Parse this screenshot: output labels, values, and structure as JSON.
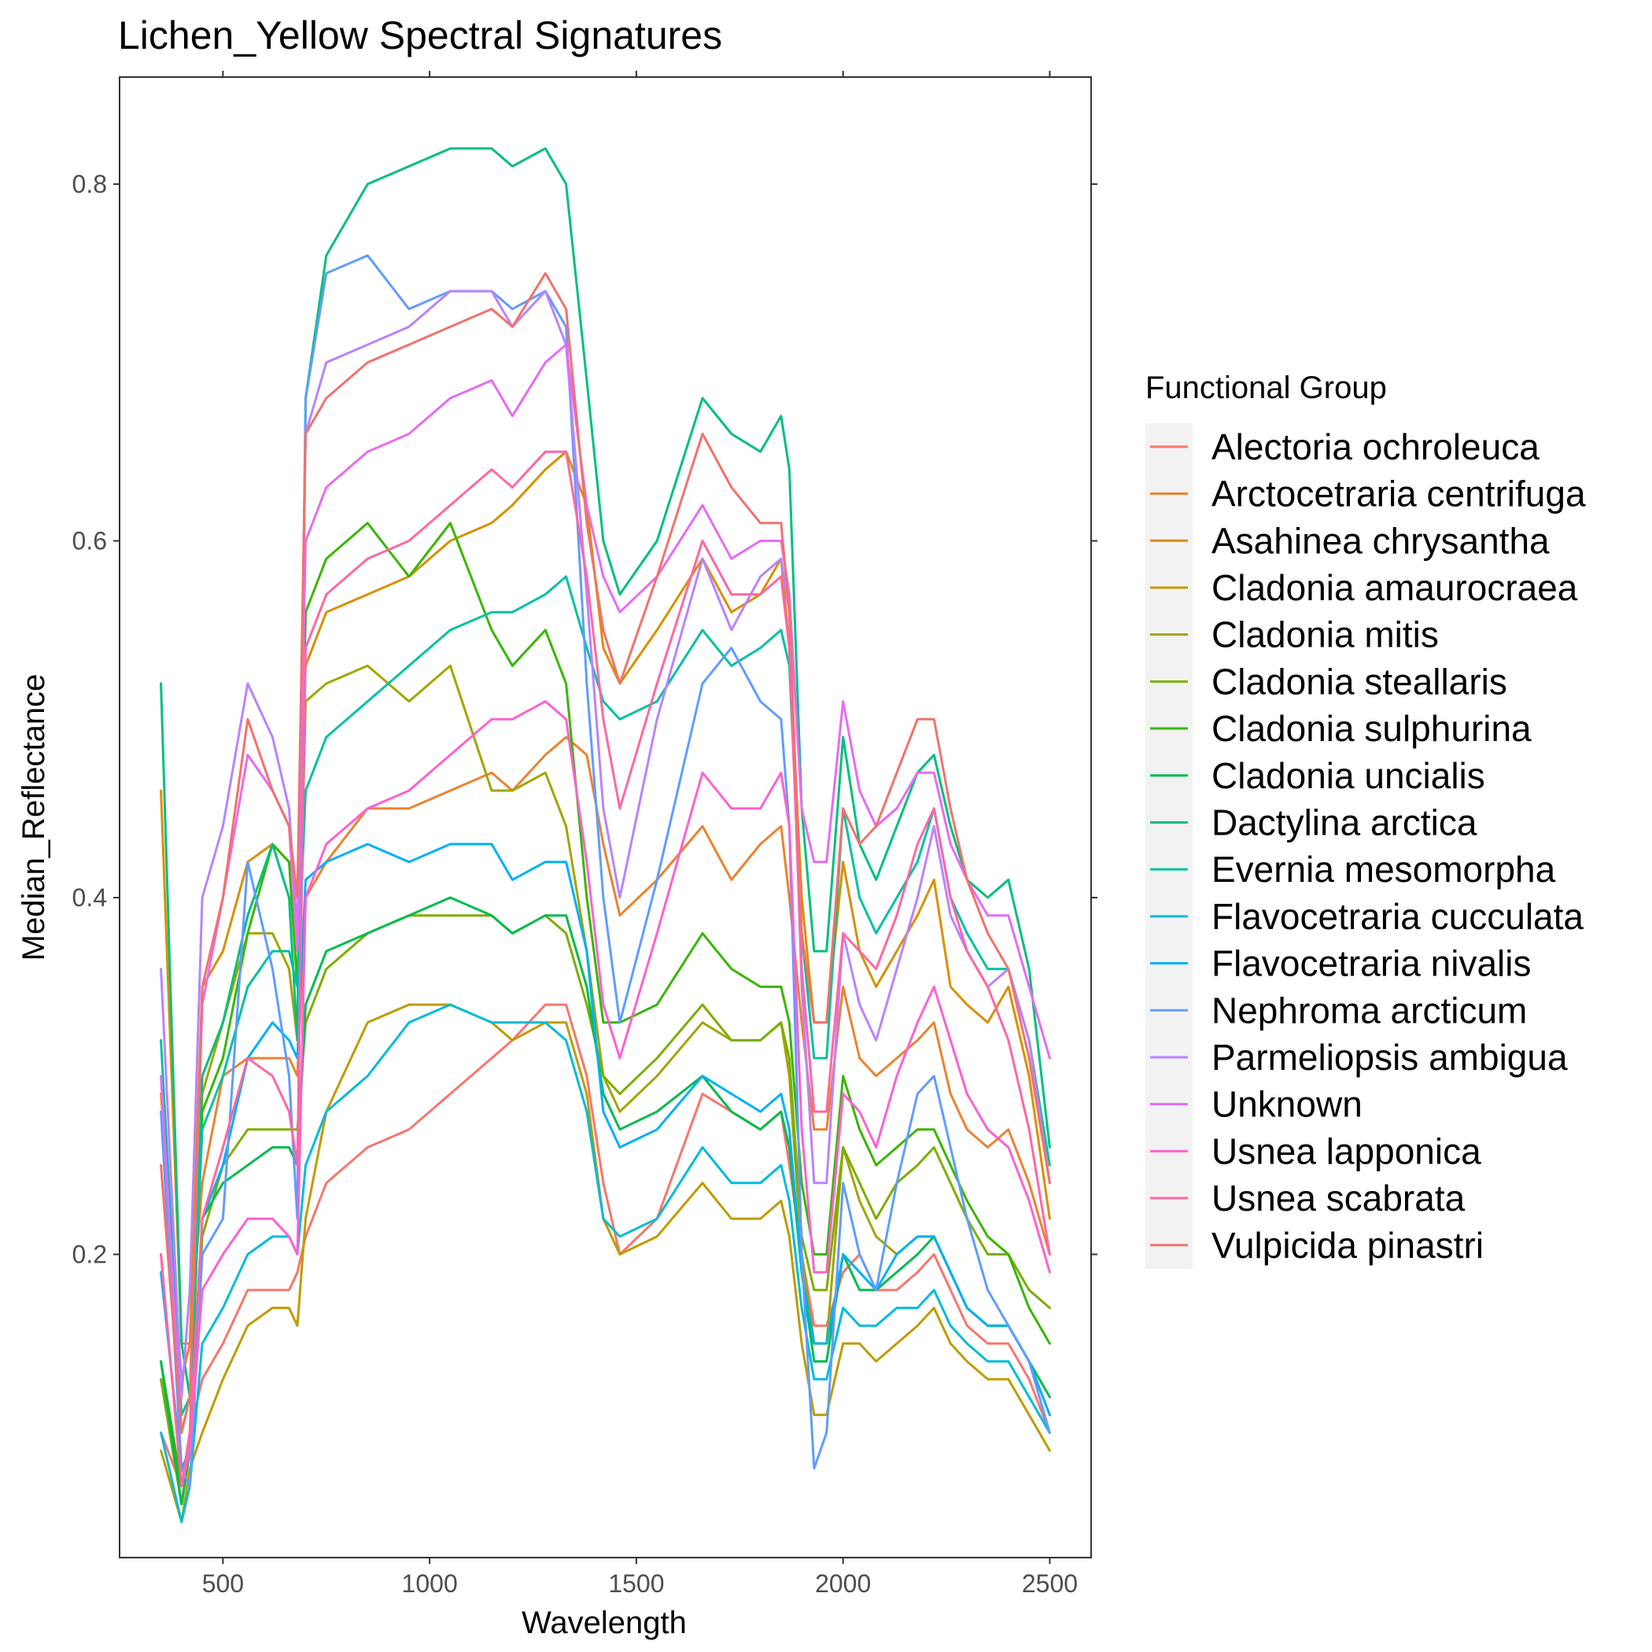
{
  "chart_data": {
    "type": "line",
    "title": "Lichen_Yellow Spectral Signatures",
    "xlabel": "Wavelength",
    "ylabel": "Median_Reflectance",
    "xlim": [
      250,
      2600
    ],
    "ylim": [
      0.03,
      0.86
    ],
    "xticks": [
      500,
      1000,
      1500,
      2000,
      2500
    ],
    "yticks": [
      0.2,
      0.4,
      0.6,
      0.8
    ],
    "xtick_labels": [
      "500",
      "1000",
      "1500",
      "2000",
      "2500"
    ],
    "ytick_labels": [
      "0.2",
      "0.4",
      "0.6",
      "0.8"
    ],
    "grid": false,
    "legend": {
      "title": "Functional Group",
      "position": "right"
    },
    "x": [
      350,
      400,
      420,
      450,
      500,
      560,
      620,
      660,
      680,
      700,
      750,
      850,
      950,
      1050,
      1150,
      1200,
      1280,
      1330,
      1380,
      1420,
      1460,
      1550,
      1660,
      1730,
      1800,
      1850,
      1870,
      1900,
      1930,
      1960,
      2000,
      2040,
      2080,
      2130,
      2180,
      2220,
      2260,
      2300,
      2350,
      2400,
      2450,
      2500
    ],
    "series": [
      {
        "name": "Alectoria ochroleuca",
        "color": "#F8766D",
        "values": [
          0.1,
          0.07,
          0.1,
          0.13,
          0.15,
          0.18,
          0.18,
          0.18,
          0.19,
          0.21,
          0.24,
          0.26,
          0.27,
          0.29,
          0.31,
          0.32,
          0.34,
          0.34,
          0.3,
          0.24,
          0.2,
          0.22,
          0.29,
          0.28,
          0.27,
          0.28,
          0.25,
          0.2,
          0.16,
          0.16,
          0.19,
          0.2,
          0.18,
          0.18,
          0.19,
          0.2,
          0.18,
          0.16,
          0.15,
          0.15,
          0.13,
          0.1
        ]
      },
      {
        "name": "Arctocetraria centrifuga",
        "color": "#EA8331",
        "values": [
          0.29,
          0.13,
          0.15,
          0.24,
          0.3,
          0.31,
          0.31,
          0.31,
          0.3,
          0.4,
          0.42,
          0.45,
          0.45,
          0.46,
          0.47,
          0.46,
          0.48,
          0.49,
          0.48,
          0.43,
          0.39,
          0.41,
          0.44,
          0.41,
          0.43,
          0.44,
          0.4,
          0.33,
          0.27,
          0.27,
          0.35,
          0.31,
          0.3,
          0.31,
          0.32,
          0.33,
          0.29,
          0.27,
          0.26,
          0.27,
          0.24,
          0.2
        ]
      },
      {
        "name": "Asahinea chrysantha",
        "color": "#D89000",
        "values": [
          0.46,
          0.15,
          0.15,
          0.35,
          0.37,
          0.42,
          0.43,
          0.42,
          0.4,
          0.53,
          0.56,
          0.57,
          0.58,
          0.6,
          0.61,
          0.62,
          0.64,
          0.65,
          0.62,
          0.54,
          0.52,
          0.55,
          0.59,
          0.56,
          0.57,
          0.59,
          0.54,
          0.4,
          0.33,
          0.33,
          0.42,
          0.37,
          0.35,
          0.37,
          0.39,
          0.41,
          0.35,
          0.34,
          0.33,
          0.35,
          0.3,
          0.22
        ]
      },
      {
        "name": "Cladonia amaurocraea",
        "color": "#C09B00",
        "values": [
          0.09,
          0.05,
          0.08,
          0.1,
          0.13,
          0.16,
          0.17,
          0.17,
          0.16,
          0.22,
          0.28,
          0.33,
          0.34,
          0.34,
          0.33,
          0.32,
          0.33,
          0.33,
          0.29,
          0.22,
          0.2,
          0.21,
          0.24,
          0.22,
          0.22,
          0.23,
          0.21,
          0.15,
          0.11,
          0.11,
          0.15,
          0.15,
          0.14,
          0.15,
          0.16,
          0.17,
          0.15,
          0.14,
          0.13,
          0.13,
          0.11,
          0.09
        ]
      },
      {
        "name": "Cladonia mitis",
        "color": "#A3A500",
        "values": [
          0.13,
          0.06,
          0.09,
          0.29,
          0.33,
          0.38,
          0.38,
          0.36,
          0.32,
          0.51,
          0.52,
          0.53,
          0.51,
          0.53,
          0.46,
          0.46,
          0.47,
          0.44,
          0.37,
          0.3,
          0.28,
          0.3,
          0.33,
          0.32,
          0.32,
          0.33,
          0.3,
          0.2,
          0.15,
          0.15,
          0.26,
          0.23,
          0.21,
          0.2,
          0.21,
          0.21,
          0.19,
          0.17,
          0.16,
          0.16,
          0.14,
          0.11
        ]
      },
      {
        "name": "Cladonia steallaris",
        "color": "#7CAE00",
        "values": [
          0.13,
          0.06,
          0.09,
          0.21,
          0.25,
          0.27,
          0.27,
          0.27,
          0.27,
          0.33,
          0.36,
          0.38,
          0.39,
          0.39,
          0.39,
          0.38,
          0.39,
          0.38,
          0.34,
          0.3,
          0.29,
          0.31,
          0.34,
          0.32,
          0.32,
          0.33,
          0.31,
          0.21,
          0.18,
          0.18,
          0.26,
          0.24,
          0.22,
          0.24,
          0.25,
          0.26,
          0.24,
          0.22,
          0.2,
          0.2,
          0.18,
          0.17
        ]
      },
      {
        "name": "Cladonia sulphurina",
        "color": "#39B600",
        "values": [
          0.14,
          0.07,
          0.1,
          0.28,
          0.31,
          0.38,
          0.43,
          0.42,
          0.35,
          0.56,
          0.59,
          0.61,
          0.58,
          0.61,
          0.55,
          0.53,
          0.55,
          0.52,
          0.4,
          0.33,
          0.33,
          0.34,
          0.38,
          0.36,
          0.35,
          0.35,
          0.33,
          0.24,
          0.2,
          0.2,
          0.3,
          0.27,
          0.25,
          0.26,
          0.27,
          0.27,
          0.25,
          0.23,
          0.21,
          0.2,
          0.17,
          0.15
        ]
      },
      {
        "name": "Cladonia uncialis",
        "color": "#00BB4E",
        "values": [
          0.14,
          0.06,
          0.09,
          0.22,
          0.24,
          0.25,
          0.26,
          0.26,
          0.25,
          0.34,
          0.37,
          0.38,
          0.39,
          0.4,
          0.39,
          0.38,
          0.39,
          0.39,
          0.35,
          0.29,
          0.27,
          0.28,
          0.3,
          0.28,
          0.27,
          0.28,
          0.26,
          0.19,
          0.14,
          0.14,
          0.2,
          0.18,
          0.18,
          0.19,
          0.2,
          0.21,
          0.19,
          0.17,
          0.16,
          0.16,
          0.14,
          0.12
        ]
      },
      {
        "name": "Dactylina arctica",
        "color": "#00BF7D",
        "values": [
          0.52,
          0.15,
          0.12,
          0.3,
          0.33,
          0.39,
          0.43,
          0.4,
          0.32,
          0.68,
          0.76,
          0.8,
          0.81,
          0.82,
          0.82,
          0.81,
          0.82,
          0.8,
          0.69,
          0.6,
          0.57,
          0.6,
          0.68,
          0.66,
          0.65,
          0.67,
          0.64,
          0.45,
          0.37,
          0.37,
          0.49,
          0.43,
          0.41,
          0.44,
          0.47,
          0.48,
          0.44,
          0.41,
          0.4,
          0.41,
          0.36,
          0.26
        ]
      },
      {
        "name": "Evernia mesomorpha",
        "color": "#00C1A3",
        "values": [
          0.32,
          0.11,
          0.12,
          0.27,
          0.3,
          0.35,
          0.37,
          0.37,
          0.35,
          0.46,
          0.49,
          0.51,
          0.53,
          0.55,
          0.56,
          0.56,
          0.57,
          0.58,
          0.54,
          0.51,
          0.5,
          0.51,
          0.55,
          0.53,
          0.54,
          0.55,
          0.53,
          0.38,
          0.31,
          0.31,
          0.45,
          0.4,
          0.38,
          0.4,
          0.42,
          0.45,
          0.4,
          0.38,
          0.36,
          0.36,
          0.32,
          0.25
        ]
      },
      {
        "name": "Flavocetraria cucculata",
        "color": "#00BCD8",
        "values": [
          0.1,
          0.05,
          0.07,
          0.15,
          0.17,
          0.2,
          0.21,
          0.21,
          0.2,
          0.25,
          0.28,
          0.3,
          0.33,
          0.34,
          0.33,
          0.33,
          0.33,
          0.32,
          0.28,
          0.22,
          0.21,
          0.22,
          0.26,
          0.24,
          0.24,
          0.25,
          0.23,
          0.17,
          0.13,
          0.13,
          0.17,
          0.16,
          0.16,
          0.17,
          0.17,
          0.18,
          0.16,
          0.15,
          0.14,
          0.14,
          0.12,
          0.1
        ]
      },
      {
        "name": "Flavocetraria nivalis",
        "color": "#00B0F6",
        "values": [
          0.19,
          0.08,
          0.09,
          0.22,
          0.25,
          0.31,
          0.33,
          0.32,
          0.31,
          0.41,
          0.42,
          0.43,
          0.42,
          0.43,
          0.43,
          0.41,
          0.42,
          0.42,
          0.37,
          0.28,
          0.26,
          0.27,
          0.3,
          0.29,
          0.28,
          0.29,
          0.27,
          0.19,
          0.15,
          0.15,
          0.2,
          0.19,
          0.18,
          0.2,
          0.21,
          0.21,
          0.19,
          0.17,
          0.16,
          0.16,
          0.14,
          0.11
        ]
      },
      {
        "name": "Nephroma arcticum",
        "color": "#619CFF",
        "values": [
          0.28,
          0.08,
          0.07,
          0.2,
          0.22,
          0.42,
          0.36,
          0.3,
          0.22,
          0.68,
          0.75,
          0.76,
          0.73,
          0.74,
          0.74,
          0.73,
          0.74,
          0.72,
          0.52,
          0.4,
          0.33,
          0.41,
          0.52,
          0.54,
          0.51,
          0.5,
          0.44,
          0.2,
          0.08,
          0.1,
          0.24,
          0.2,
          0.18,
          0.24,
          0.29,
          0.3,
          0.26,
          0.22,
          0.18,
          0.16,
          0.14,
          0.1
        ]
      },
      {
        "name": "Parmeliopsis ambigua",
        "color": "#B983FF",
        "values": [
          0.36,
          0.12,
          0.18,
          0.4,
          0.44,
          0.52,
          0.49,
          0.45,
          0.38,
          0.66,
          0.7,
          0.71,
          0.72,
          0.74,
          0.74,
          0.72,
          0.74,
          0.71,
          0.57,
          0.45,
          0.4,
          0.5,
          0.59,
          0.55,
          0.58,
          0.59,
          0.56,
          0.35,
          0.24,
          0.24,
          0.38,
          0.34,
          0.32,
          0.36,
          0.4,
          0.44,
          0.39,
          0.37,
          0.35,
          0.36,
          0.32,
          0.24
        ]
      },
      {
        "name": "Unknown",
        "color": "#E76BF3",
        "values": [
          0.3,
          0.1,
          0.12,
          0.34,
          0.4,
          0.48,
          0.46,
          0.44,
          0.37,
          0.6,
          0.63,
          0.65,
          0.66,
          0.68,
          0.69,
          0.67,
          0.7,
          0.71,
          0.62,
          0.58,
          0.56,
          0.58,
          0.62,
          0.59,
          0.6,
          0.6,
          0.57,
          0.45,
          0.42,
          0.42,
          0.51,
          0.46,
          0.44,
          0.45,
          0.47,
          0.47,
          0.43,
          0.41,
          0.39,
          0.39,
          0.35,
          0.31
        ]
      },
      {
        "name": "Usnea lapponica",
        "color": "#FD61D1",
        "values": [
          0.2,
          0.07,
          0.09,
          0.18,
          0.2,
          0.22,
          0.22,
          0.21,
          0.2,
          0.4,
          0.43,
          0.45,
          0.46,
          0.48,
          0.5,
          0.5,
          0.51,
          0.5,
          0.42,
          0.34,
          0.31,
          0.38,
          0.47,
          0.45,
          0.45,
          0.47,
          0.44,
          0.27,
          0.19,
          0.19,
          0.29,
          0.28,
          0.26,
          0.3,
          0.33,
          0.35,
          0.32,
          0.29,
          0.27,
          0.26,
          0.23,
          0.19
        ]
      },
      {
        "name": "Usnea scabrata",
        "color": "#FF67A4",
        "values": [
          0.2,
          0.07,
          0.1,
          0.22,
          0.26,
          0.31,
          0.3,
          0.28,
          0.25,
          0.54,
          0.57,
          0.59,
          0.6,
          0.62,
          0.64,
          0.63,
          0.65,
          0.65,
          0.58,
          0.5,
          0.45,
          0.52,
          0.6,
          0.57,
          0.57,
          0.58,
          0.54,
          0.36,
          0.28,
          0.28,
          0.38,
          0.37,
          0.36,
          0.39,
          0.43,
          0.45,
          0.4,
          0.37,
          0.35,
          0.32,
          0.27,
          0.2
        ]
      },
      {
        "name": "Vulpicida pinastri",
        "color": "#F2726C",
        "values": [
          0.25,
          0.1,
          0.12,
          0.35,
          0.4,
          0.5,
          0.46,
          0.44,
          0.4,
          0.66,
          0.68,
          0.7,
          0.71,
          0.72,
          0.73,
          0.72,
          0.75,
          0.73,
          0.61,
          0.55,
          0.52,
          0.58,
          0.66,
          0.63,
          0.61,
          0.61,
          0.56,
          0.38,
          0.33,
          0.33,
          0.45,
          0.43,
          0.44,
          0.47,
          0.5,
          0.5,
          0.45,
          0.41,
          0.38,
          0.36,
          0.31,
          0.24
        ]
      }
    ]
  }
}
